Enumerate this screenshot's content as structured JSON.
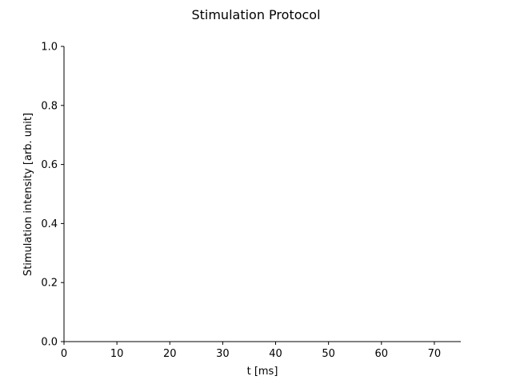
{
  "chart_data": {
    "type": "line",
    "title": "Stimulation Protocol",
    "xlabel": "t [ms]",
    "ylabel": "Stimulation intensity [arb. unit]",
    "xlim": [
      0,
      75
    ],
    "ylim": [
      0,
      1
    ],
    "x_ticks": [
      0,
      10,
      20,
      30,
      40,
      50,
      60,
      70
    ],
    "y_ticks": [
      0.0,
      0.2,
      0.4,
      0.6,
      0.8,
      1.0
    ],
    "x_tick_labels": [
      "0",
      "10",
      "20",
      "30",
      "40",
      "50",
      "60",
      "70"
    ],
    "y_tick_labels": [
      "0.0",
      "0.2",
      "0.4",
      "0.6",
      "0.8",
      "1.0"
    ],
    "grid": false,
    "spines": [
      "left",
      "bottom"
    ],
    "series": []
  },
  "colors": {
    "axis": "#000000",
    "background": "#ffffff"
  }
}
